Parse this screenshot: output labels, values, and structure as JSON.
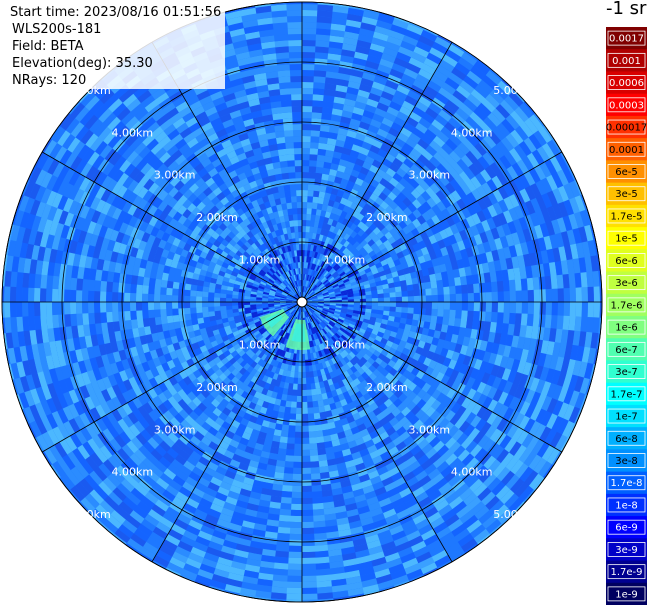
{
  "info": {
    "start_time": "Start time: 2023/08/16 01:51:56",
    "instrument": "WLS200s-181",
    "field": "Field: BETA",
    "elevation": "Elevation(deg): 35.30",
    "nrays": "NRays: 120"
  },
  "colorbar": {
    "title": "-1 sr",
    "labels": [
      "0.0017",
      "0.001",
      "0.0006",
      "0.0003",
      "0.00017",
      "0.0001",
      "6e-5",
      "3e-5",
      "1.7e-5",
      "1e-5",
      "6e-6",
      "3e-6",
      "1.7e-6",
      "1e-6",
      "6e-7",
      "3e-7",
      "1.7e-7",
      "1e-7",
      "6e-8",
      "3e-8",
      "1.7e-8",
      "1e-8",
      "6e-9",
      "3e-9",
      "1.7e-9",
      "1e-9"
    ],
    "colors": [
      "#800000",
      "#b00000",
      "#d80000",
      "#ff0000",
      "#ff3000",
      "#ff6000",
      "#ff9000",
      "#ffc000",
      "#ffe000",
      "#ffff00",
      "#e0ff20",
      "#c0ff40",
      "#a0ff60",
      "#80ff80",
      "#50ffb0",
      "#30ffd0",
      "#00ffff",
      "#00e0ff",
      "#00b0ff",
      "#0090ff",
      "#0060ff",
      "#0030ff",
      "#0000ff",
      "#0000c8",
      "#000090",
      "#000060"
    ],
    "text_dark": [
      "#ffffff",
      "#ffffff",
      "#ffffff",
      "#ffffff",
      "#000000",
      "#000000",
      "#000000",
      "#000000",
      "#000000",
      "#000000",
      "#000000",
      "#000000",
      "#000000",
      "#000000",
      "#000000",
      "#000000",
      "#000000",
      "#000000",
      "#000000",
      "#000000",
      "#ffffff",
      "#ffffff",
      "#ffffff",
      "#ffffff",
      "#ffffff",
      "#ffffff"
    ]
  },
  "rings": {
    "labels": [
      "1.00km",
      "2.00km",
      "3.00km",
      "4.00km",
      "5.00km"
    ],
    "km": [
      1,
      2,
      3,
      4,
      5
    ]
  },
  "scan": {
    "nrays": 120,
    "max_range_km": 5
  }
}
